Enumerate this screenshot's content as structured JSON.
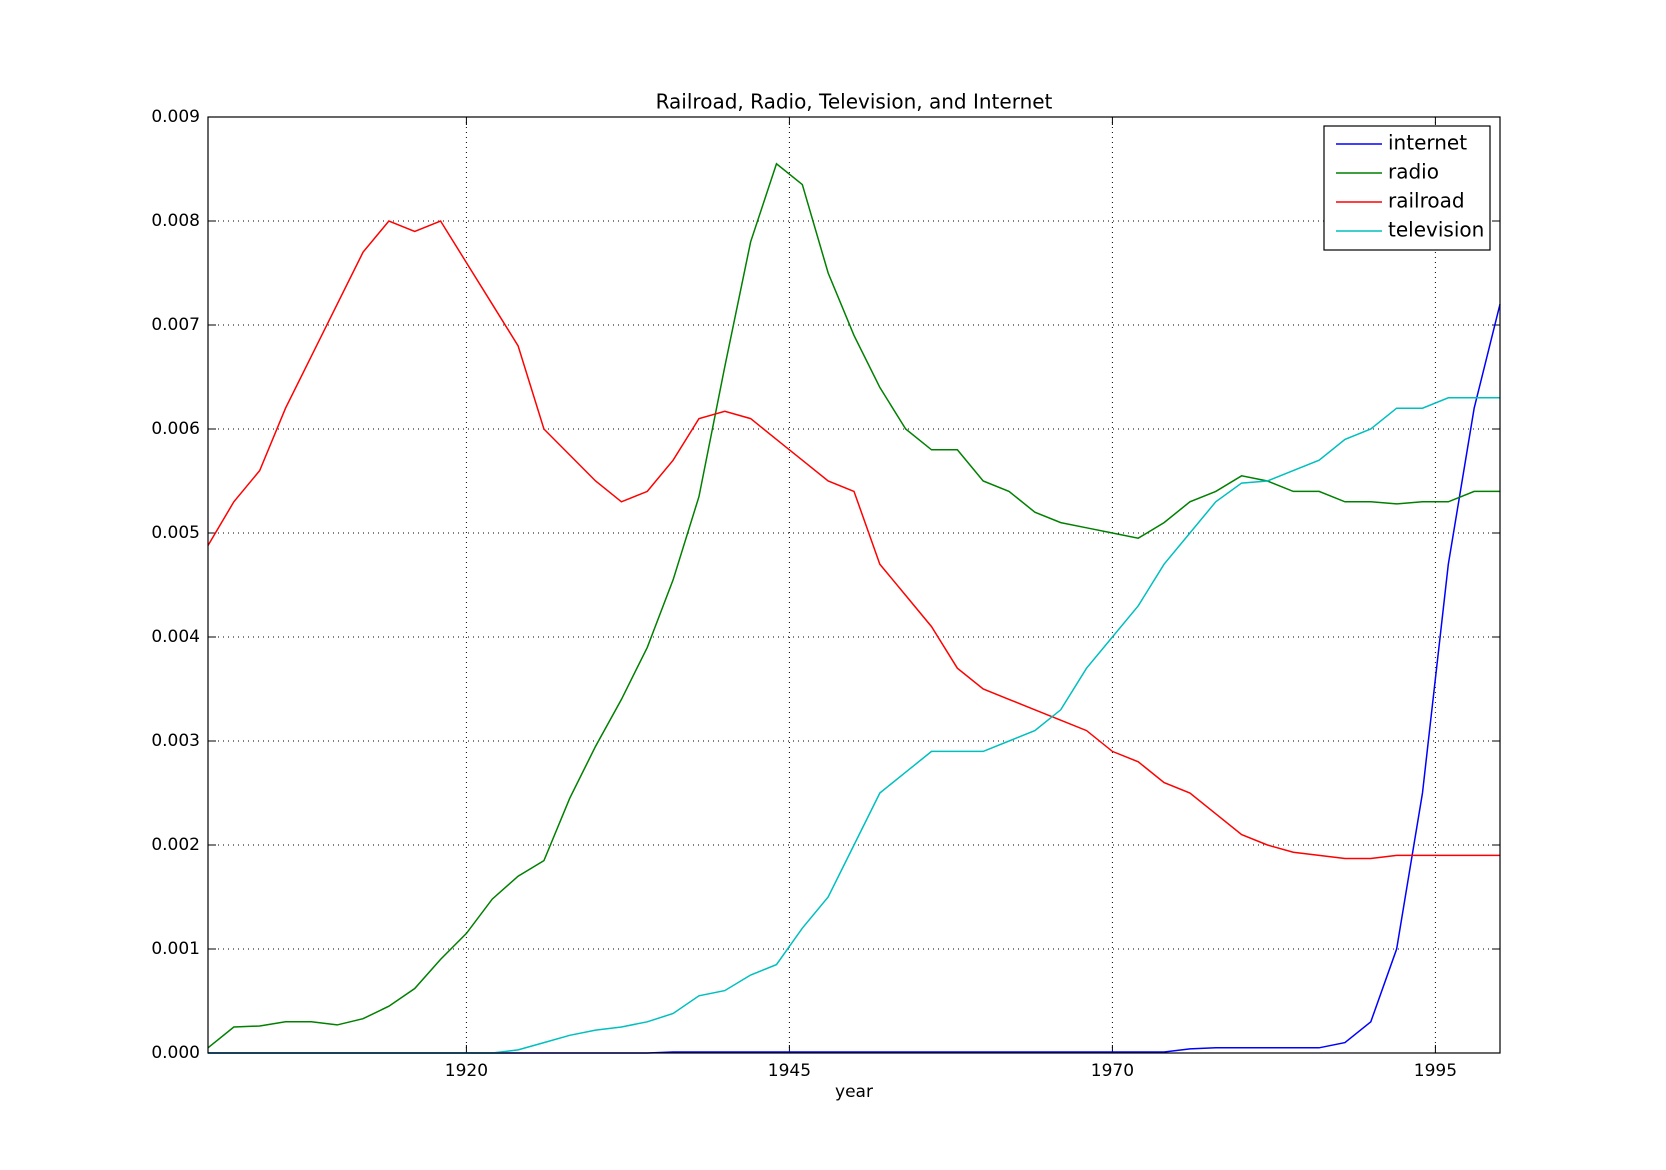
{
  "chart_data": {
    "type": "line",
    "title": "Railroad, Radio, Television, and Internet",
    "x_label": "year",
    "x": [
      1900,
      1902,
      1904,
      1906,
      1908,
      1910,
      1912,
      1914,
      1916,
      1918,
      1920,
      1922,
      1924,
      1926,
      1928,
      1930,
      1932,
      1934,
      1936,
      1938,
      1940,
      1942,
      1944,
      1946,
      1948,
      1950,
      1952,
      1954,
      1956,
      1958,
      1960,
      1962,
      1964,
      1966,
      1968,
      1970,
      1972,
      1974,
      1976,
      1978,
      1980,
      1982,
      1984,
      1986,
      1988,
      1990,
      1992,
      1994,
      1996,
      1998,
      2000
    ],
    "series": [
      {
        "name": "internet",
        "color": "#0000ff",
        "values": [
          0,
          0,
          0,
          0,
          0,
          0,
          0,
          0,
          0,
          0,
          0,
          0,
          0,
          0,
          0,
          0,
          0,
          0,
          1e-05,
          1e-05,
          1e-05,
          1e-05,
          1e-05,
          1e-05,
          1e-05,
          1e-05,
          1e-05,
          1e-05,
          1e-05,
          1e-05,
          1e-05,
          1e-05,
          1e-05,
          1e-05,
          1e-05,
          1e-05,
          1e-05,
          1e-05,
          4e-05,
          5e-05,
          5e-05,
          5e-05,
          5e-05,
          5e-05,
          0.0001,
          0.0003,
          0.001,
          0.0025,
          0.0047,
          0.0062,
          0.0072
        ]
      },
      {
        "name": "radio",
        "color": "#008000",
        "values": [
          5e-05,
          0.00025,
          0.00026,
          0.0003,
          0.0003,
          0.00027,
          0.00033,
          0.00045,
          0.00062,
          0.0009,
          0.00115,
          0.00148,
          0.0017,
          0.00185,
          0.00245,
          0.00295,
          0.0034,
          0.0039,
          0.00455,
          0.00535,
          0.0066,
          0.0078,
          0.00855,
          0.00835,
          0.0075,
          0.0069,
          0.0064,
          0.006,
          0.0058,
          0.0058,
          0.0055,
          0.0054,
          0.0052,
          0.0051,
          0.00505,
          0.005,
          0.00495,
          0.0051,
          0.0053,
          0.0054,
          0.00555,
          0.0055,
          0.0054,
          0.0054,
          0.0053,
          0.0053,
          0.00528,
          0.0053,
          0.0053,
          0.0054,
          0.0054
        ]
      },
      {
        "name": "railroad",
        "color": "#ff0000",
        "values": [
          0.00488,
          0.0053,
          0.0056,
          0.0062,
          0.0067,
          0.0072,
          0.0077,
          0.008,
          0.0079,
          0.008,
          0.0076,
          0.0072,
          0.0068,
          0.006,
          0.00575,
          0.0055,
          0.0053,
          0.0054,
          0.0057,
          0.0061,
          0.00617,
          0.0061,
          0.0059,
          0.0057,
          0.0055,
          0.0054,
          0.0047,
          0.0044,
          0.0041,
          0.0037,
          0.0035,
          0.0034,
          0.0033,
          0.0032,
          0.0031,
          0.0029,
          0.0028,
          0.0026,
          0.0025,
          0.0023,
          0.0021,
          0.002,
          0.00193,
          0.0019,
          0.00187,
          0.00187,
          0.0019,
          0.0019,
          0.0019,
          0.0019,
          0.0019
        ]
      },
      {
        "name": "television",
        "color": "#00bfbf",
        "values": [
          0,
          0,
          0,
          0,
          0,
          0,
          0,
          0,
          0,
          0,
          0,
          0,
          3e-05,
          0.0001,
          0.00017,
          0.00022,
          0.00025,
          0.0003,
          0.00038,
          0.00055,
          0.0006,
          0.00075,
          0.00085,
          0.0012,
          0.0015,
          0.002,
          0.0025,
          0.0027,
          0.0029,
          0.0029,
          0.0029,
          0.003,
          0.0031,
          0.0033,
          0.0037,
          0.004,
          0.0043,
          0.0047,
          0.005,
          0.0053,
          0.00548,
          0.0055,
          0.0056,
          0.0057,
          0.0059,
          0.006,
          0.0062,
          0.0062,
          0.0063,
          0.0063,
          0.0063
        ]
      }
    ],
    "xlim": [
      1900,
      2000
    ],
    "xticks": [
      1920,
      1945,
      1970,
      1995
    ],
    "ylim": [
      0,
      0.009
    ],
    "yticks": [
      {
        "value": 0,
        "label": "0.000"
      },
      {
        "value": 0.001,
        "label": "0.001"
      },
      {
        "value": 0.002,
        "label": "0.002"
      },
      {
        "value": 0.003,
        "label": "0.003"
      },
      {
        "value": 0.004,
        "label": "0.004"
      },
      {
        "value": 0.005,
        "label": "0.005"
      },
      {
        "value": 0.006,
        "label": "0.006"
      },
      {
        "value": 0.007,
        "label": "0.007"
      },
      {
        "value": 0.008,
        "label": "0.008"
      },
      {
        "value": 0.009,
        "label": "0.009"
      }
    ],
    "grid": true,
    "legend": "upper right"
  }
}
